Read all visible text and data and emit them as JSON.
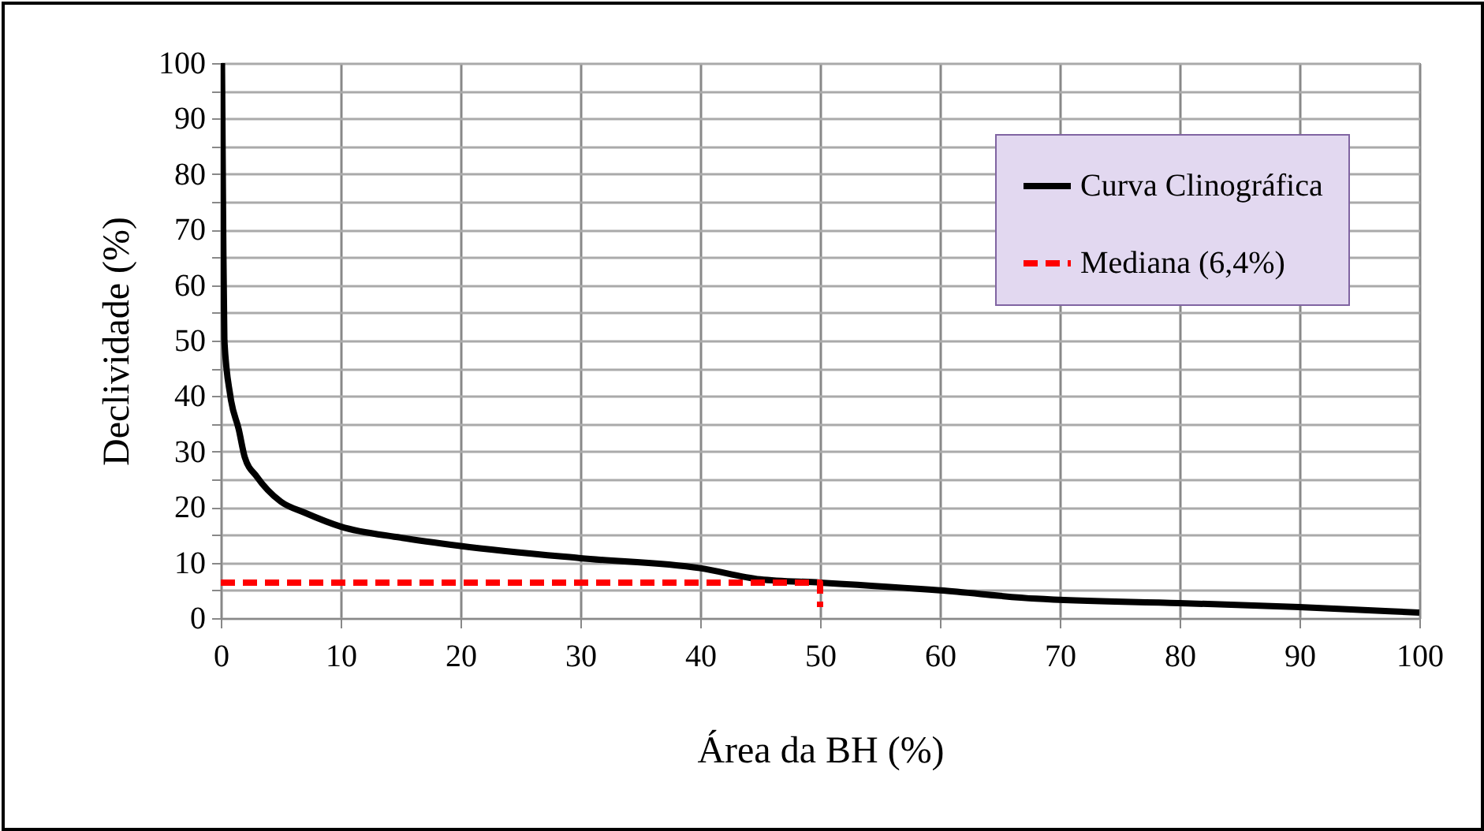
{
  "chart_data": {
    "type": "line",
    "xlabel": "Área da BH (%)",
    "ylabel": "Declividade (%)",
    "xlim": [
      0,
      100
    ],
    "ylim": [
      0,
      100
    ],
    "xticks": [
      0,
      10,
      20,
      30,
      40,
      50,
      60,
      70,
      80,
      90,
      100
    ],
    "yticks": [
      0,
      {
        "value": 5,
        "label": null
      },
      10,
      {
        "value": 15,
        "label": null
      },
      20,
      {
        "value": 25,
        "label": null
      },
      30,
      {
        "value": 35,
        "label": null
      },
      40,
      {
        "value": 45,
        "label": null
      },
      50,
      {
        "value": 55,
        "label": null
      },
      60,
      {
        "value": 65,
        "label": null
      },
      70,
      {
        "value": 75,
        "label": null
      },
      80,
      {
        "value": 85,
        "label": null
      },
      90,
      {
        "value": 95,
        "label": null
      },
      100
    ],
    "grid": true,
    "legend": "top right",
    "series": [
      {
        "name": "Curva Clinográfica",
        "color": "#000000",
        "line_style": "solid",
        "x": [
          0.1,
          0.2,
          0.3,
          0.8,
          1.5,
          2,
          3,
          5,
          7,
          10,
          15,
          20,
          30,
          40,
          45,
          50,
          60,
          68,
          80,
          90,
          95,
          100
        ],
        "values": [
          100,
          70,
          50,
          40,
          34,
          29,
          25.5,
          21,
          19,
          16.5,
          14.5,
          13,
          10.8,
          9,
          7,
          6.4,
          5,
          3.5,
          2.7,
          2,
          1.5,
          1
        ]
      },
      {
        "name": "Mediana (6,4%)",
        "color": "#ff0000",
        "line_style": "dashed",
        "x": [
          0,
          50,
          50
        ],
        "values": [
          6.4,
          6.4,
          2
        ]
      }
    ]
  }
}
